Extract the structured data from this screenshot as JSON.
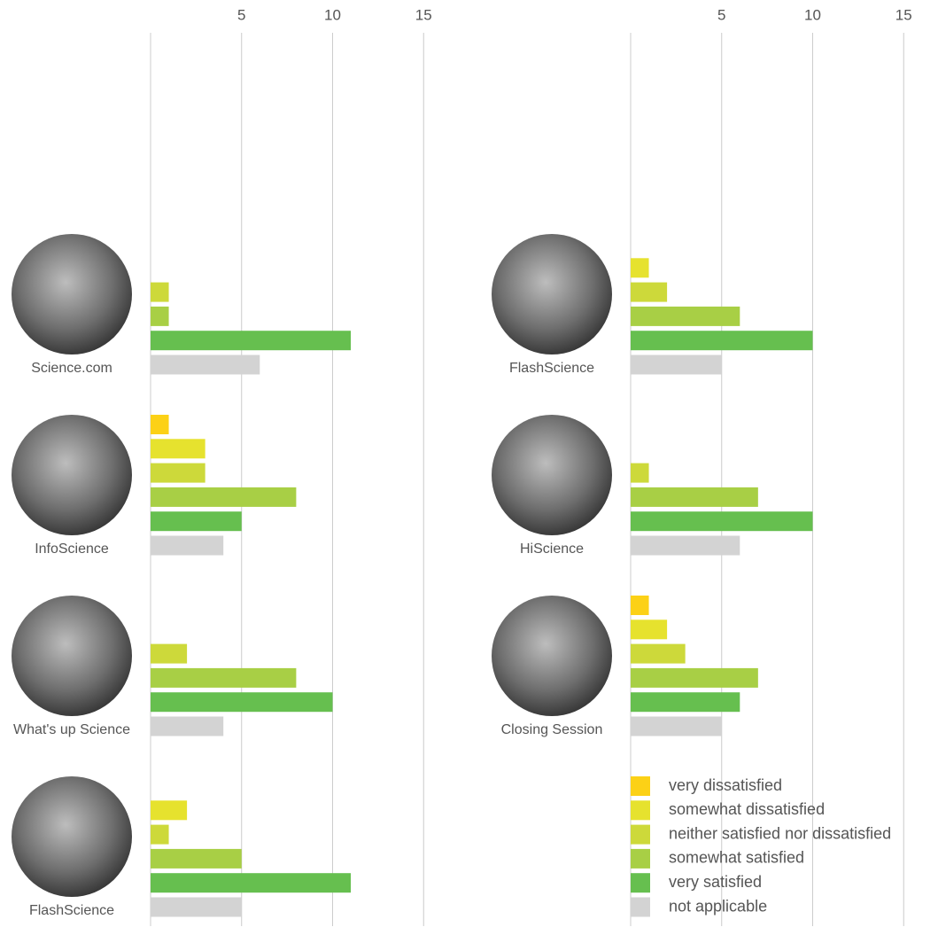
{
  "chart_data": {
    "type": "bar",
    "orientation": "horizontal",
    "categories": [
      "Science.com",
      "InfoScience",
      "What's up Science",
      "FlashScience",
      "FlashScience",
      "HiScience",
      "Closing Session"
    ],
    "series": [
      {
        "name": "very dissatisfied",
        "color": "#fcd116",
        "values": [
          0,
          1,
          0,
          0,
          0,
          0,
          1
        ]
      },
      {
        "name": "somewhat dissatisfied",
        "color": "#e6e22e",
        "values": [
          0,
          3,
          0,
          2,
          1,
          0,
          2
        ]
      },
      {
        "name": "neither satisfied nor dissatisfied",
        "color": "#cdd93a",
        "values": [
          1,
          3,
          2,
          1,
          2,
          1,
          3
        ]
      },
      {
        "name": "somewhat satisfied",
        "color": "#a8cf45",
        "values": [
          1,
          8,
          8,
          5,
          6,
          7,
          7
        ]
      },
      {
        "name": "very satisfied",
        "color": "#66bf4f",
        "values": [
          11,
          5,
          10,
          11,
          10,
          10,
          6
        ]
      },
      {
        "name": "not applicable",
        "color": "#d3d3d3",
        "values": [
          6,
          4,
          4,
          5,
          5,
          6,
          5
        ]
      }
    ],
    "xlim": [
      0,
      16
    ],
    "xticks": [
      5,
      10,
      15
    ],
    "grid": true,
    "legend": "bottom-right"
  }
}
